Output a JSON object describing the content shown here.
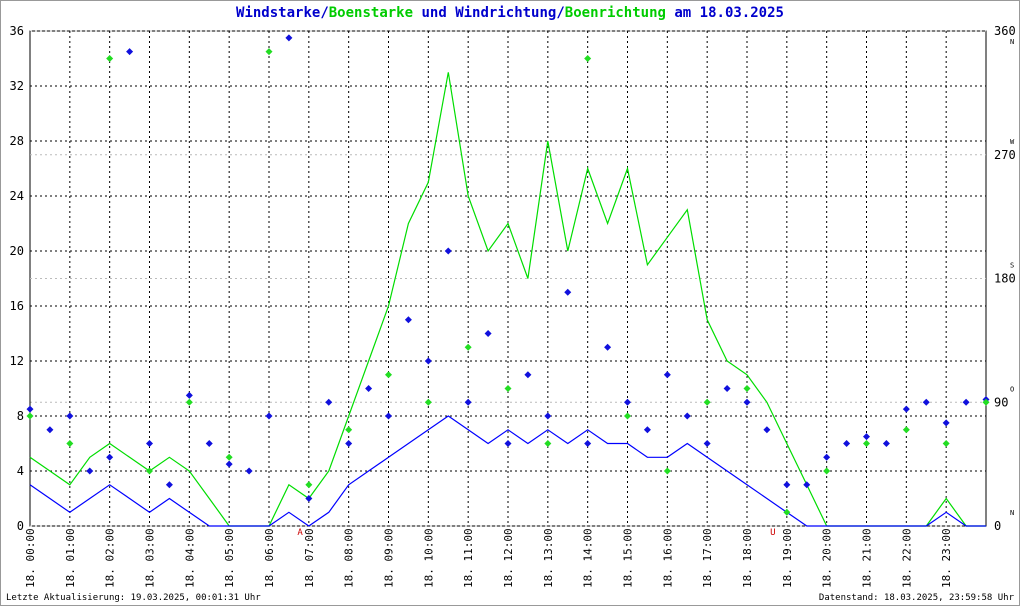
{
  "chart_data": {
    "type": "wind",
    "title_parts": [
      {
        "text": "Windstarke",
        "color": "#0000cc"
      },
      {
        "text": "/",
        "color": "#0000cc"
      },
      {
        "text": "Boenstarke",
        "color": "#00cc00"
      },
      {
        "text": " und ",
        "color": "#0000cc"
      },
      {
        "text": "Windrichtung",
        "color": "#0000cc"
      },
      {
        "text": "/",
        "color": "#0000cc"
      },
      {
        "text": "Boenrichtung",
        "color": "#00cc00"
      },
      {
        "text": " am 18.03.2025",
        "color": "#0000cc"
      }
    ],
    "footer_left": "Letzte Aktualisierung: 19.03.2025, 00:01:31 Uhr",
    "footer_right": "Datenstand: 18.03.2025, 23:59:58 Uhr",
    "annotations": [
      {
        "x": 6.78,
        "text": "A",
        "color": "#cc0000"
      },
      {
        "x": 18.65,
        "text": "U",
        "color": "#cc0000"
      }
    ],
    "xlim": [
      0,
      24
    ],
    "xticks": [
      {
        "value": 0,
        "label": "18. 00:00"
      },
      {
        "value": 1,
        "label": "18. 01:00"
      },
      {
        "value": 2,
        "label": "18. 02:00"
      },
      {
        "value": 3,
        "label": "18. 03:00"
      },
      {
        "value": 4,
        "label": "18. 04:00"
      },
      {
        "value": 5,
        "label": "18. 05:00"
      },
      {
        "value": 6,
        "label": "18. 06:00"
      },
      {
        "value": 7,
        "label": "18. 07:00"
      },
      {
        "value": 8,
        "label": "18. 08:00"
      },
      {
        "value": 9,
        "label": "18. 09:00"
      },
      {
        "value": 10,
        "label": "18. 10:00"
      },
      {
        "value": 11,
        "label": "18. 11:00"
      },
      {
        "value": 12,
        "label": "18. 12:00"
      },
      {
        "value": 13,
        "label": "18. 13:00"
      },
      {
        "value": 14,
        "label": "18. 14:00"
      },
      {
        "value": 15,
        "label": "18. 15:00"
      },
      {
        "value": 16,
        "label": "18. 16:00"
      },
      {
        "value": 17,
        "label": "18. 17:00"
      },
      {
        "value": 18,
        "label": "18. 18:00"
      },
      {
        "value": 19,
        "label": "18. 19:00"
      },
      {
        "value": 20,
        "label": "18. 20:00"
      },
      {
        "value": 21,
        "label": "18. 21:00"
      },
      {
        "value": 22,
        "label": "18. 22:00"
      },
      {
        "value": 23,
        "label": "18. 23:00"
      }
    ],
    "ylim": [
      0,
      36
    ],
    "yticks": [
      0,
      4,
      8,
      12,
      16,
      20,
      24,
      28,
      32,
      36
    ],
    "y2lim": [
      0,
      360
    ],
    "y2ticks": [
      0,
      90,
      180,
      270,
      360
    ],
    "y2compass": [
      "N",
      "O",
      "S",
      "W",
      "N"
    ],
    "grid": true,
    "series": [
      {
        "name": "Boenstarke",
        "color": "#00dd00",
        "kind": "line",
        "axis": "y",
        "x": [
          0,
          0.5,
          1,
          1.5,
          2,
          2.5,
          3,
          3.5,
          4,
          4.5,
          5,
          5.5,
          6,
          6.5,
          7,
          7.5,
          8,
          8.5,
          9,
          9.5,
          10,
          10.5,
          11,
          11.5,
          12,
          12.5,
          13,
          13.5,
          14,
          14.5,
          15,
          15.5,
          16,
          16.5,
          17,
          17.5,
          18,
          18.5,
          19,
          19.5,
          20,
          20.5,
          21,
          21.5,
          22,
          22.5,
          23,
          23.5,
          24
        ],
        "values": [
          5,
          4,
          3,
          5,
          6,
          5,
          4,
          5,
          4,
          2,
          0,
          0,
          0,
          3,
          2,
          4,
          8,
          12,
          16,
          22,
          25,
          33,
          24,
          20,
          22,
          18,
          28,
          20,
          26,
          22,
          26,
          19,
          21,
          23,
          15,
          12,
          11,
          9,
          6,
          3,
          0,
          0,
          0,
          0,
          0,
          0,
          2,
          0,
          0
        ]
      },
      {
        "name": "Windstarke",
        "color": "#0000ff",
        "kind": "line",
        "axis": "y",
        "x": [
          0,
          0.5,
          1,
          1.5,
          2,
          2.5,
          3,
          3.5,
          4,
          4.5,
          5,
          5.5,
          6,
          6.5,
          7,
          7.5,
          8,
          8.5,
          9,
          9.5,
          10,
          10.5,
          11,
          11.5,
          12,
          12.5,
          13,
          13.5,
          14,
          14.5,
          15,
          15.5,
          16,
          16.5,
          17,
          17.5,
          18,
          18.5,
          19,
          19.5,
          20,
          20.5,
          21,
          21.5,
          22,
          22.5,
          23,
          23.5,
          24
        ],
        "values": [
          3,
          2,
          1,
          2,
          3,
          2,
          1,
          2,
          1,
          0,
          0,
          0,
          0,
          1,
          0,
          1,
          3,
          4,
          5,
          6,
          7,
          8,
          7,
          6,
          7,
          6,
          7,
          6,
          7,
          6,
          6,
          5,
          5,
          6,
          5,
          4,
          3,
          2,
          1,
          0,
          0,
          0,
          0,
          0,
          0,
          0,
          1,
          0,
          0
        ]
      },
      {
        "name": "Windrichtung",
        "color": "#1010dd",
        "kind": "diamond",
        "axis": "y2",
        "x": [
          0,
          0.5,
          1,
          1.5,
          2,
          2.5,
          3,
          3.5,
          4,
          4.5,
          5,
          5.5,
          6,
          6.5,
          7,
          7.5,
          8,
          8.5,
          9,
          9.5,
          10,
          10.5,
          11,
          11.5,
          12,
          12.5,
          13,
          13.5,
          14,
          14.5,
          15,
          15.5,
          16,
          16.5,
          17,
          17.5,
          18,
          18.5,
          19,
          19.5,
          20,
          20.5,
          21,
          21.5,
          22,
          22.5,
          23,
          23.5,
          24
        ],
        "values": [
          85,
          70,
          80,
          40,
          50,
          345,
          60,
          30,
          95,
          60,
          45,
          40,
          80,
          355,
          20,
          90,
          60,
          100,
          80,
          150,
          120,
          200,
          90,
          140,
          60,
          110,
          80,
          170,
          60,
          130,
          90,
          70,
          110,
          80,
          60,
          100,
          90,
          70,
          30,
          30,
          50,
          60,
          65,
          60,
          85,
          90,
          75,
          90,
          92
        ]
      },
      {
        "name": "Boenrichtung",
        "color": "#22dd22",
        "kind": "diamond",
        "axis": "y2",
        "x": [
          0,
          1,
          2,
          3,
          4,
          5,
          6,
          7,
          8,
          9,
          10,
          11,
          12,
          13,
          14,
          15,
          16,
          17,
          18,
          19,
          20,
          21,
          22,
          23,
          24
        ],
        "values": [
          80,
          60,
          340,
          40,
          90,
          50,
          345,
          30,
          70,
          110,
          90,
          130,
          100,
          60,
          340,
          80,
          40,
          90,
          100,
          10,
          40,
          60,
          70,
          60,
          90
        ]
      }
    ]
  }
}
